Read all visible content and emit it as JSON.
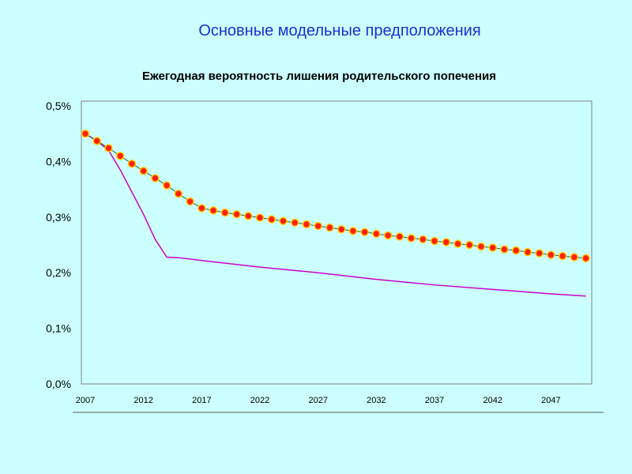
{
  "slide": {
    "title": "Основные модельные предположения"
  },
  "colors": {
    "background": "#ccffff",
    "title": "#1a2fd6",
    "series_dots_fill": "#ff2200",
    "series_dots_edge": "#ffcc00",
    "series_line": "#cc00cc"
  },
  "chart_data": {
    "type": "line",
    "title": "Ежегодная вероятность лишения родительского попечения",
    "xlabel": "",
    "ylabel": "",
    "xlim": [
      2007,
      2050.5
    ],
    "ylim": [
      0,
      0.5
    ],
    "x_ticks": [
      2007,
      2012,
      2017,
      2022,
      2027,
      2032,
      2037,
      2042,
      2047
    ],
    "y_ticks": [
      "0,0%",
      "0,1%",
      "0,2%",
      "0,3%",
      "0,4%",
      "0,5%"
    ],
    "grid": false,
    "legend": "none",
    "series": [
      {
        "marker": "circle",
        "x": [
          2007,
          2008,
          2009,
          2010,
          2011,
          2012,
          2013,
          2014,
          2015,
          2016,
          2017,
          2018,
          2019,
          2020,
          2021,
          2022,
          2023,
          2024,
          2025,
          2026,
          2027,
          2028,
          2029,
          2030,
          2031,
          2032,
          2033,
          2034,
          2035,
          2036,
          2037,
          2038,
          2039,
          2040,
          2041,
          2042,
          2043,
          2044,
          2045,
          2046,
          2047,
          2048,
          2049,
          2050
        ],
        "values": [
          0.45,
          0.437,
          0.424,
          0.41,
          0.396,
          0.383,
          0.37,
          0.357,
          0.342,
          0.328,
          0.316,
          0.312,
          0.308,
          0.305,
          0.302,
          0.299,
          0.296,
          0.293,
          0.29,
          0.287,
          0.284,
          0.281,
          0.278,
          0.275,
          0.273,
          0.27,
          0.267,
          0.265,
          0.262,
          0.26,
          0.257,
          0.255,
          0.252,
          0.25,
          0.247,
          0.245,
          0.242,
          0.24,
          0.237,
          0.235,
          0.232,
          0.23,
          0.228,
          0.226
        ]
      },
      {
        "marker": "none",
        "x": [
          2007,
          2008,
          2009,
          2010,
          2011,
          2012,
          2013,
          2014,
          2015,
          2017,
          2022,
          2027,
          2032,
          2037,
          2042,
          2047,
          2050
        ],
        "values": [
          0.45,
          0.437,
          0.42,
          0.385,
          0.345,
          0.305,
          0.26,
          0.228,
          0.227,
          0.222,
          0.21,
          0.2,
          0.188,
          0.178,
          0.17,
          0.162,
          0.158
        ]
      }
    ]
  }
}
